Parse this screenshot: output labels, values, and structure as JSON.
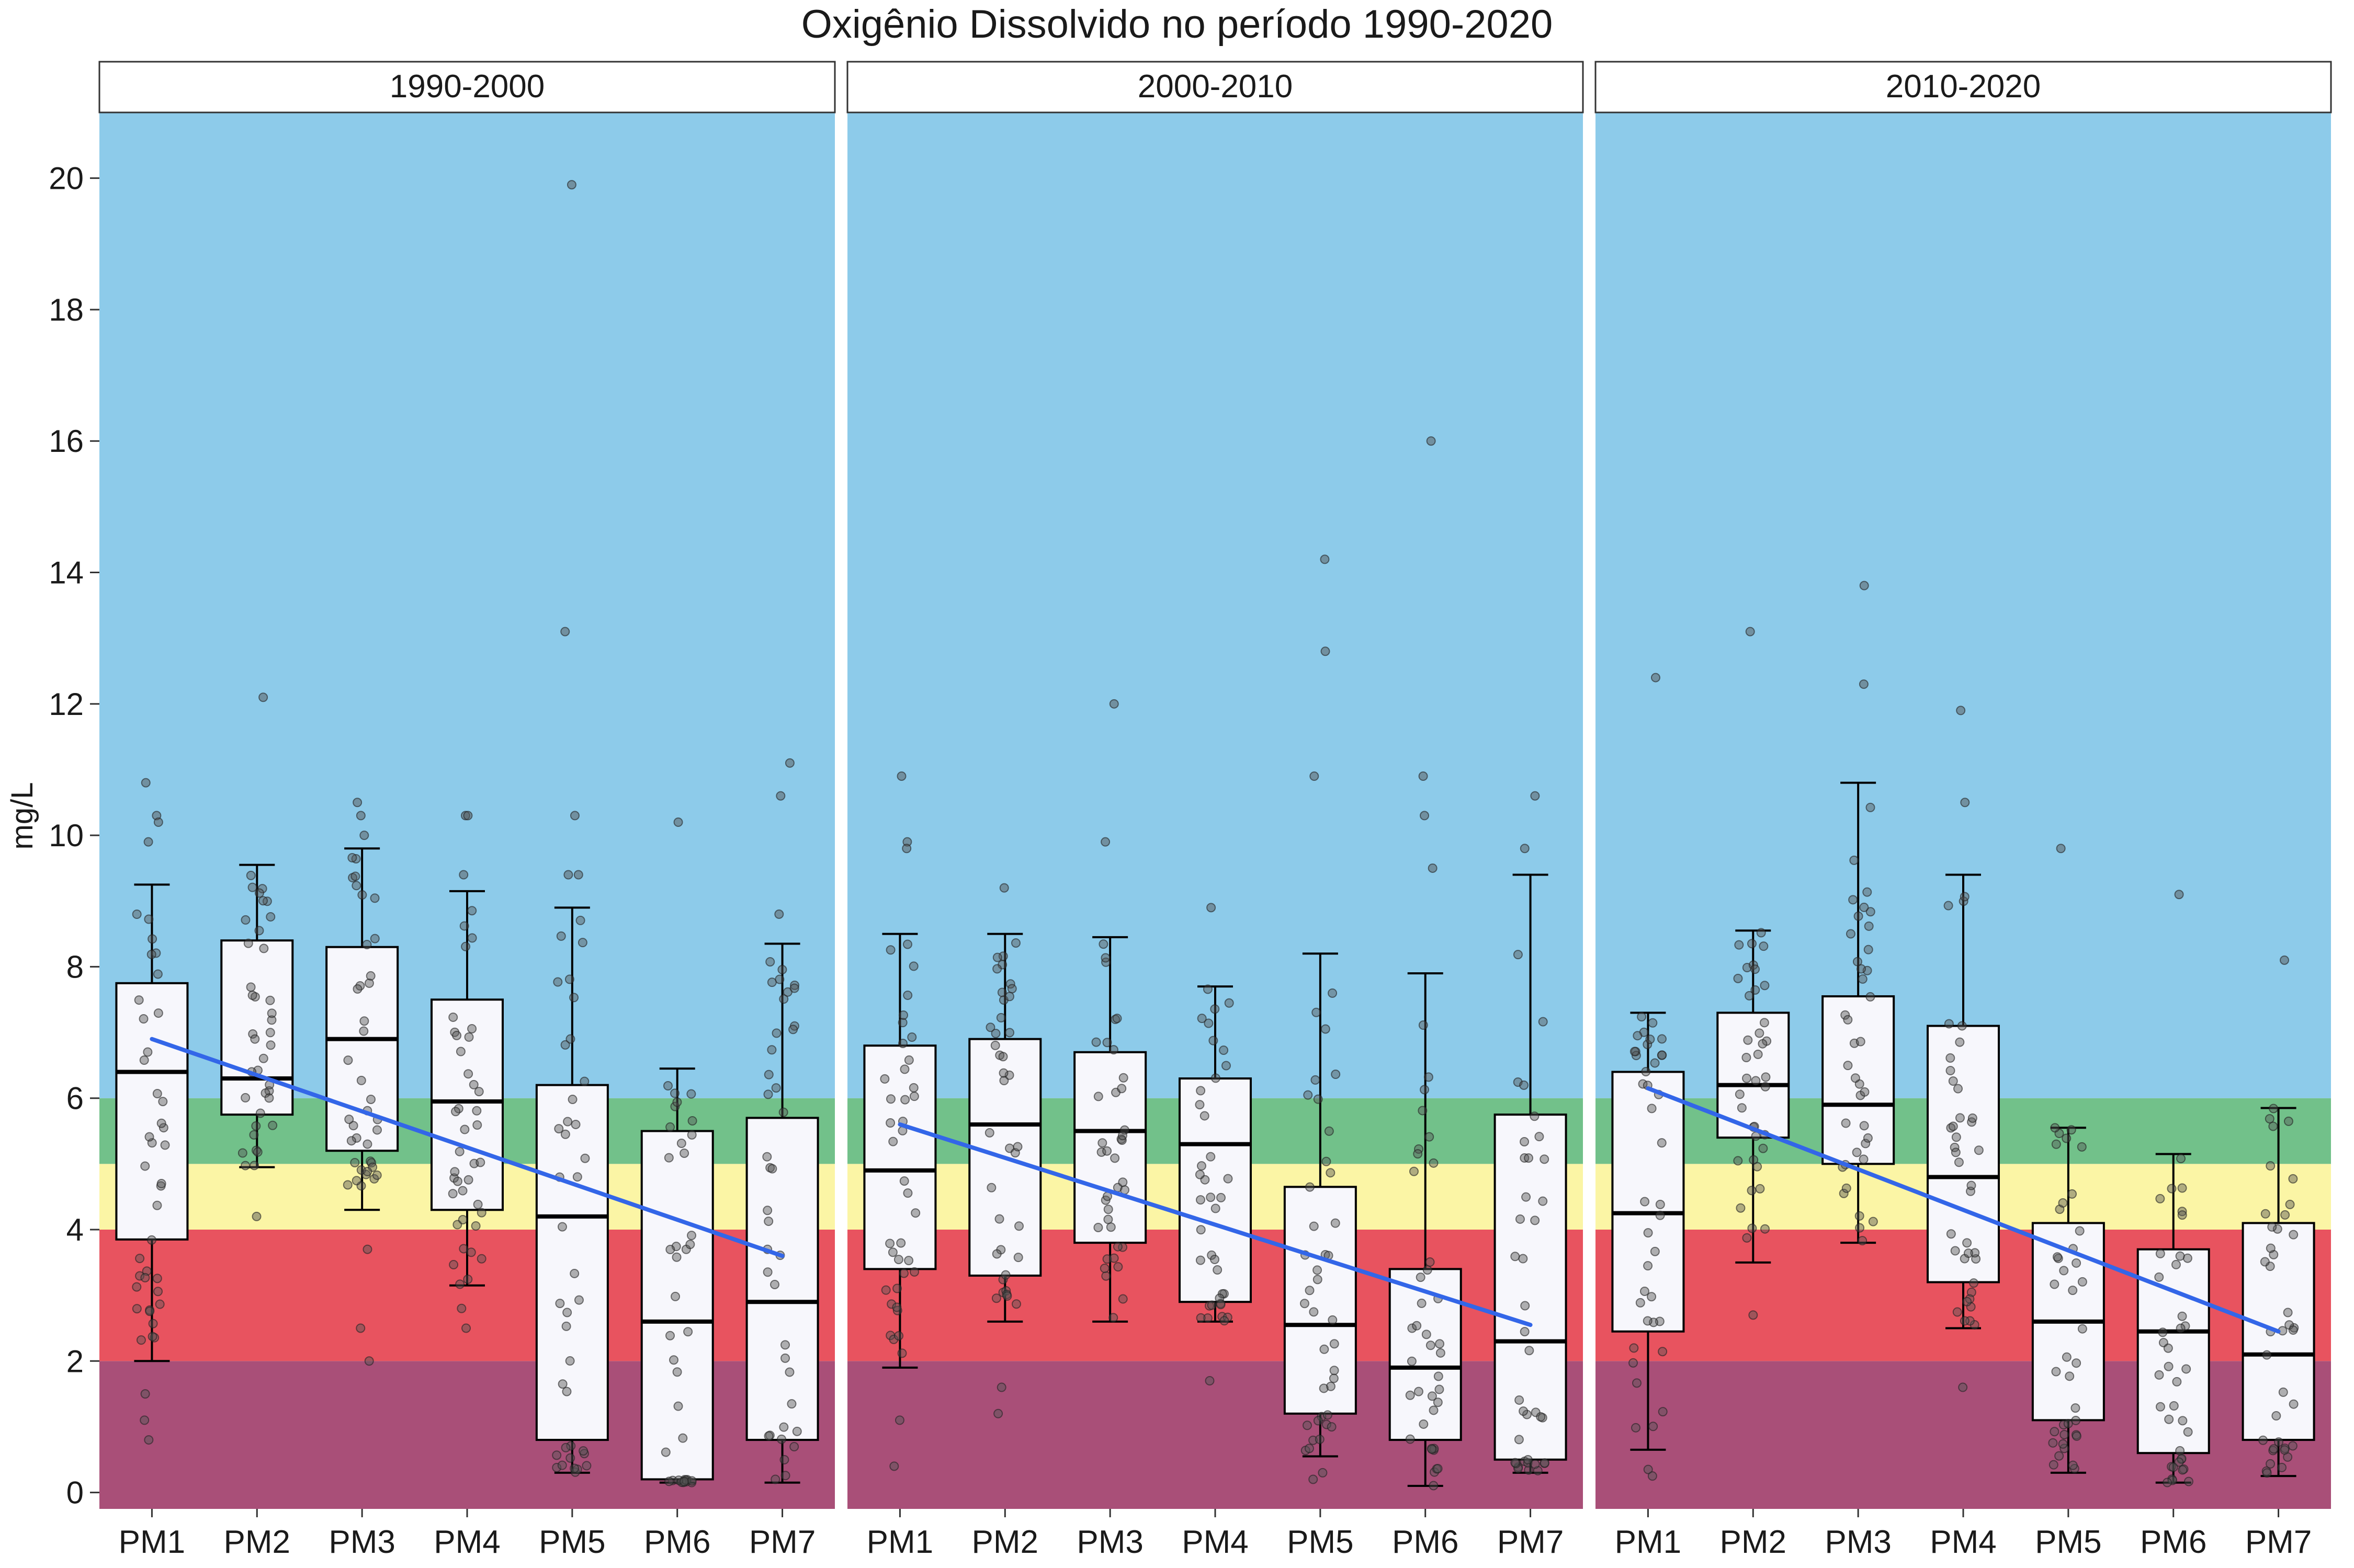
{
  "chart_data": {
    "type": "box",
    "title": "Oxigênio Dissolvido no período 1990-2020",
    "ylabel": "mg/L",
    "xlabel": "",
    "ylim": [
      -0.25,
      21.0
    ],
    "yticks": [
      0,
      2,
      4,
      6,
      8,
      10,
      12,
      14,
      16,
      18,
      20
    ],
    "categories": [
      "PM1",
      "PM2",
      "PM3",
      "PM4",
      "PM5",
      "PM6",
      "PM7"
    ],
    "bands": [
      {
        "from": 0,
        "to": 2,
        "color": "#a94f78"
      },
      {
        "from": 2,
        "to": 4,
        "color": "#e8535f"
      },
      {
        "from": 4,
        "to": 5,
        "color": "#fbf5a5"
      },
      {
        "from": 5,
        "to": 6,
        "color": "#72c18a"
      },
      {
        "from": 6,
        "to": 21,
        "color": "#8dcbea"
      }
    ],
    "colors": {
      "box_fill": "#f7f7fc",
      "box_stroke": "#000000",
      "trend": "#3366e8",
      "points": "#555555",
      "strip_fill": "#ffffff",
      "strip_stroke": "#333333"
    },
    "panels": [
      {
        "label": "1990-2000",
        "boxes": [
          {
            "cat": "PM1",
            "min": 2.0,
            "q1": 3.85,
            "median": 6.4,
            "q3": 7.75,
            "max": 9.25
          },
          {
            "cat": "PM2",
            "min": 4.95,
            "q1": 5.75,
            "median": 6.3,
            "q3": 8.4,
            "max": 9.55
          },
          {
            "cat": "PM3",
            "min": 4.3,
            "q1": 5.2,
            "median": 6.9,
            "q3": 8.3,
            "max": 9.8
          },
          {
            "cat": "PM4",
            "min": 3.15,
            "q1": 4.3,
            "median": 5.95,
            "q3": 7.5,
            "max": 9.15
          },
          {
            "cat": "PM5",
            "min": 0.3,
            "q1": 0.8,
            "median": 4.2,
            "q3": 6.2,
            "max": 8.9
          },
          {
            "cat": "PM6",
            "min": 0.15,
            "q1": 0.2,
            "median": 2.6,
            "q3": 5.5,
            "max": 6.45
          },
          {
            "cat": "PM7",
            "min": 0.15,
            "q1": 0.8,
            "median": 2.9,
            "q3": 5.7,
            "max": 8.35
          }
        ],
        "trend": [
          6.9,
          3.6
        ],
        "outliers": [
          {
            "cat": "PM1",
            "values": [
              10.8,
              10.3,
              10.2,
              9.9,
              1.5,
              1.1,
              0.8
            ]
          },
          {
            "cat": "PM2",
            "values": [
              12.1,
              4.2
            ]
          },
          {
            "cat": "PM3",
            "values": [
              10.5,
              10.3,
              10.0,
              3.7,
              2.5,
              2.0
            ]
          },
          {
            "cat": "PM4",
            "values": [
              10.3,
              10.3,
              9.4,
              2.8,
              2.5
            ]
          },
          {
            "cat": "PM5",
            "values": [
              19.9,
              13.1,
              10.3,
              9.4,
              9.4
            ]
          },
          {
            "cat": "PM6",
            "values": [
              10.2
            ]
          },
          {
            "cat": "PM7",
            "values": [
              11.1,
              10.6,
              8.8
            ]
          }
        ]
      },
      {
        "label": "2000-2010",
        "boxes": [
          {
            "cat": "PM1",
            "min": 1.9,
            "q1": 3.4,
            "median": 4.9,
            "q3": 6.8,
            "max": 8.5
          },
          {
            "cat": "PM2",
            "min": 2.6,
            "q1": 3.3,
            "median": 5.6,
            "q3": 6.9,
            "max": 8.5
          },
          {
            "cat": "PM3",
            "min": 2.6,
            "q1": 3.8,
            "median": 5.5,
            "q3": 6.7,
            "max": 8.45
          },
          {
            "cat": "PM4",
            "min": 2.6,
            "q1": 2.9,
            "median": 5.3,
            "q3": 6.3,
            "max": 7.7
          },
          {
            "cat": "PM5",
            "min": 0.55,
            "q1": 1.2,
            "median": 2.55,
            "q3": 4.65,
            "max": 8.2
          },
          {
            "cat": "PM6",
            "min": 0.1,
            "q1": 0.8,
            "median": 1.9,
            "q3": 3.4,
            "max": 7.9
          },
          {
            "cat": "PM7",
            "min": 0.3,
            "q1": 0.5,
            "median": 2.3,
            "q3": 5.75,
            "max": 9.4
          }
        ],
        "trend": [
          5.6,
          2.55
        ],
        "outliers": [
          {
            "cat": "PM1",
            "values": [
              10.9,
              9.9,
              9.8,
              1.1,
              0.4
            ]
          },
          {
            "cat": "PM2",
            "values": [
              9.2,
              1.6,
              1.2
            ]
          },
          {
            "cat": "PM3",
            "values": [
              12.0,
              9.9
            ]
          },
          {
            "cat": "PM4",
            "values": [
              8.9,
              1.7
            ]
          },
          {
            "cat": "PM5",
            "values": [
              14.2,
              12.8,
              10.9,
              0.3,
              0.2
            ]
          },
          {
            "cat": "PM6",
            "values": [
              16.0,
              10.9,
              10.3,
              9.5
            ]
          },
          {
            "cat": "PM7",
            "values": [
              10.6,
              9.8
            ]
          }
        ]
      },
      {
        "label": "2010-2020",
        "boxes": [
          {
            "cat": "PM1",
            "min": 0.65,
            "q1": 2.45,
            "median": 4.25,
            "q3": 6.4,
            "max": 7.3
          },
          {
            "cat": "PM2",
            "min": 3.5,
            "q1": 5.4,
            "median": 6.2,
            "q3": 7.3,
            "max": 8.55
          },
          {
            "cat": "PM3",
            "min": 3.8,
            "q1": 5.0,
            "median": 5.9,
            "q3": 7.55,
            "max": 10.8
          },
          {
            "cat": "PM4",
            "min": 2.5,
            "q1": 3.2,
            "median": 4.8,
            "q3": 7.1,
            "max": 9.4
          },
          {
            "cat": "PM5",
            "min": 0.3,
            "q1": 1.1,
            "median": 2.6,
            "q3": 4.1,
            "max": 5.55
          },
          {
            "cat": "PM6",
            "min": 0.15,
            "q1": 0.6,
            "median": 2.45,
            "q3": 3.7,
            "max": 5.15
          },
          {
            "cat": "PM7",
            "min": 0.25,
            "q1": 0.8,
            "median": 2.1,
            "q3": 4.1,
            "max": 5.85
          }
        ],
        "trend": [
          6.15,
          2.45
        ],
        "outliers": [
          {
            "cat": "PM1",
            "values": [
              12.4,
              0.35,
              0.25
            ]
          },
          {
            "cat": "PM2",
            "values": [
              13.1,
              2.7
            ]
          },
          {
            "cat": "PM3",
            "values": [
              13.8,
              12.3
            ]
          },
          {
            "cat": "PM4",
            "values": [
              11.9,
              10.5,
              1.6
            ]
          },
          {
            "cat": "PM5",
            "values": [
              9.8
            ]
          },
          {
            "cat": "PM6",
            "values": [
              9.1
            ]
          },
          {
            "cat": "PM7",
            "values": [
              8.1
            ]
          }
        ]
      }
    ]
  }
}
